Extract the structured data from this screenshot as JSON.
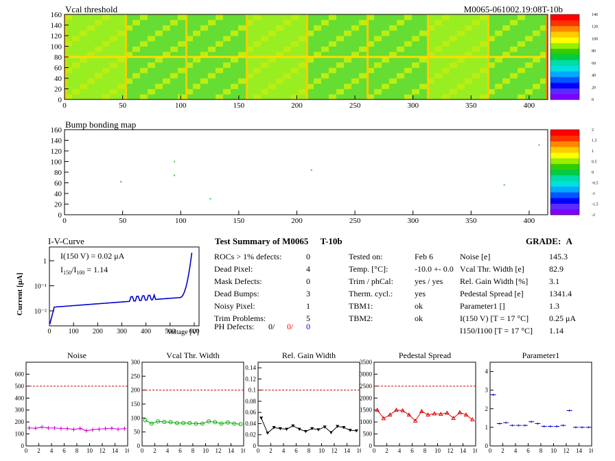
{
  "maps": {
    "vcal": {
      "title": "Vcal threshold",
      "module_id": "M0065-061002.19:08T-10b",
      "x_ticks": [
        "0",
        "50",
        "100",
        "150",
        "200",
        "250",
        "300",
        "350",
        "400"
      ],
      "y_ticks": [
        "0",
        "20",
        "40",
        "60",
        "80",
        "100",
        "120",
        "140",
        "160"
      ],
      "colorbar_ticks": [
        "0",
        "20",
        "40",
        "60",
        "80",
        "100",
        "120",
        "140"
      ]
    },
    "bump": {
      "title": "Bump bonding map",
      "x_ticks": [
        "0",
        "50",
        "100",
        "150",
        "200",
        "250",
        "300",
        "350",
        "400"
      ],
      "y_ticks": [
        "0",
        "20",
        "40",
        "60",
        "80",
        "100",
        "120",
        "140",
        "160"
      ],
      "colorbar_ticks": [
        "-2",
        "-1.5",
        "-1",
        "-0.5",
        "0",
        "0.5",
        "1",
        "1.5",
        "2"
      ],
      "defects": [
        {
          "x": 48,
          "y": 62
        },
        {
          "x": 94,
          "y": 100
        },
        {
          "x": 94,
          "y": 74
        },
        {
          "x": 125,
          "y": 30
        },
        {
          "x": 212,
          "y": 84
        },
        {
          "x": 378,
          "y": 56
        },
        {
          "x": 408,
          "y": 131
        }
      ]
    }
  },
  "iv_curve": {
    "title": "I-V-Curve",
    "ylabel": "Current [μA]",
    "xlabel": "Voltage [V]",
    "annotation_i150": "I(150 V) = 0.02 μA",
    "annotation_ratio_label": "I150/I100",
    "annotation_ratio_value": "1.14",
    "x_ticks": [
      "0",
      "100",
      "200",
      "300",
      "400",
      "500",
      "600"
    ],
    "y_ticks": [
      "1",
      "10⁻¹",
      "10⁻²"
    ],
    "color": "#0000cc"
  },
  "summary": {
    "title": "Test Summary of M0065",
    "config": "T-10b",
    "grade_label": "GRADE:",
    "grade_value": "A",
    "left_rows": [
      {
        "label": "ROCs > 1% defects:",
        "value": "0"
      },
      {
        "label": "Dead Pixel:",
        "value": "4"
      },
      {
        "label": "Mask Defects:",
        "value": "0"
      },
      {
        "label": "Dead Bumps:",
        "value": "3"
      },
      {
        "label": "Noisy Pixel:",
        "value": "1"
      },
      {
        "label": "Trim Problems:",
        "value": "5"
      }
    ],
    "ph_defects": {
      "label": "PH Defects:",
      "v1": "0/",
      "v2": "0/",
      "v3": "0"
    },
    "mid_rows": [
      {
        "label": "Tested on:",
        "value": "Feb 6"
      },
      {
        "label": "Temp. [°C]:",
        "value": "-10.0 +- 0.0"
      },
      {
        "label": "Trim / phCal:",
        "value": "yes / yes"
      },
      {
        "label": "Therm. cycl.:",
        "value": "yes"
      },
      {
        "label": "TBM1:",
        "value": "ok"
      },
      {
        "label": "TBM2:",
        "value": "ok"
      }
    ],
    "right_rows": [
      {
        "label": "Noise [e]",
        "value": "145.3"
      },
      {
        "label": "Vcal Thr. Width [e]",
        "value": "82.9"
      },
      {
        "label": "Rel. Gain Width [%]",
        "value": "3.1"
      },
      {
        "label": "Pedestal Spread [e]",
        "value": "1341.4"
      },
      {
        "label": "Parameter1 []",
        "value": "1.3"
      },
      {
        "label": "I(150 V) [T = 17 °C]",
        "value": "0.25 μA"
      },
      {
        "label": "I150/I100 [T = 17 °C]",
        "value": "1.14"
      }
    ],
    "colors": {
      "red": "#ff0000",
      "blue": "#0000cc"
    }
  },
  "chart_data": [
    {
      "type": "line",
      "title": "Noise",
      "x": [
        0,
        1,
        2,
        3,
        4,
        5,
        6,
        7,
        8,
        9,
        10,
        11,
        12,
        13,
        14,
        15
      ],
      "values": [
        150,
        148,
        158,
        150,
        150,
        146,
        145,
        138,
        146,
        128,
        135,
        140,
        145,
        148,
        140,
        145
      ],
      "ylim": [
        0,
        700
      ],
      "y_ticks": [
        0,
        100,
        200,
        300,
        400,
        500,
        600
      ],
      "x_ticks": [
        0,
        2,
        4,
        6,
        8,
        10,
        12,
        14,
        16
      ],
      "cut": 500,
      "marker": "cross",
      "color": "#cc00cc"
    },
    {
      "type": "line",
      "title": "Vcal Thr. Width",
      "x": [
        0,
        1,
        2,
        3,
        4,
        5,
        6,
        7,
        8,
        9,
        10,
        11,
        12,
        13,
        14,
        15
      ],
      "values": [
        92,
        80,
        88,
        86,
        85,
        82,
        82,
        82,
        80,
        80,
        88,
        85,
        80,
        84,
        80,
        78
      ],
      "ylim": [
        0,
        300
      ],
      "y_ticks": [
        0,
        50,
        100,
        150,
        200,
        250,
        300
      ],
      "x_ticks": [
        0,
        2,
        4,
        6,
        8,
        10,
        12,
        14,
        16
      ],
      "cut": 200,
      "marker": "circle",
      "color": "#00aa00"
    },
    {
      "type": "line",
      "title": "Rel. Gain Width",
      "x": [
        0,
        1,
        2,
        3,
        4,
        5,
        6,
        7,
        8,
        9,
        10,
        11,
        12,
        13,
        14,
        15
      ],
      "values": [
        0.05,
        0.023,
        0.033,
        0.031,
        0.03,
        0.036,
        0.03,
        0.026,
        0.031,
        0.029,
        0.034,
        0.024,
        0.035,
        0.033,
        0.028,
        0.027
      ],
      "ylim": [
        0,
        0.15
      ],
      "y_ticks": [
        0,
        0.02,
        0.04,
        0.06,
        0.08,
        0.1,
        0.12,
        0.14
      ],
      "x_ticks": [
        0,
        2,
        4,
        6,
        8,
        10,
        12,
        14,
        16
      ],
      "cut": 0.1,
      "marker": "triangle-down",
      "color": "#000000"
    },
    {
      "type": "line",
      "title": "Pedestal Spread",
      "x": [
        0,
        1,
        2,
        3,
        4,
        5,
        6,
        7,
        8,
        9,
        10,
        11,
        12,
        13,
        14,
        15
      ],
      "values": [
        1500,
        1150,
        1300,
        1500,
        1480,
        1300,
        1050,
        1450,
        1300,
        1350,
        1330,
        1380,
        1160,
        1400,
        1300,
        1100
      ],
      "ylim": [
        0,
        3500
      ],
      "y_ticks": [
        0,
        500,
        1000,
        1500,
        2000,
        2500,
        3000,
        3500
      ],
      "x_ticks": [
        0,
        2,
        4,
        6,
        8,
        10,
        12,
        14,
        16
      ],
      "cut": 2500,
      "marker": "triangle-up",
      "color": "#dd0000"
    },
    {
      "type": "scatter",
      "title": "Parameter1",
      "x": [
        0,
        1,
        2,
        3,
        4,
        5,
        6,
        7,
        8,
        9,
        10,
        11,
        12,
        13,
        14,
        15
      ],
      "values": [
        2.75,
        1.2,
        1.25,
        1.1,
        1.1,
        1.1,
        1.3,
        1.2,
        1.05,
        1.05,
        1.05,
        1.1,
        1.9,
        1.0,
        1.0,
        1.0
      ],
      "ylim": [
        0,
        4.5
      ],
      "y_ticks": [
        0,
        1,
        2,
        3,
        4
      ],
      "x_ticks": [
        0,
        2,
        4,
        6,
        8,
        10,
        12,
        14,
        16
      ],
      "marker": "hbar",
      "color": "#0000cc"
    }
  ]
}
